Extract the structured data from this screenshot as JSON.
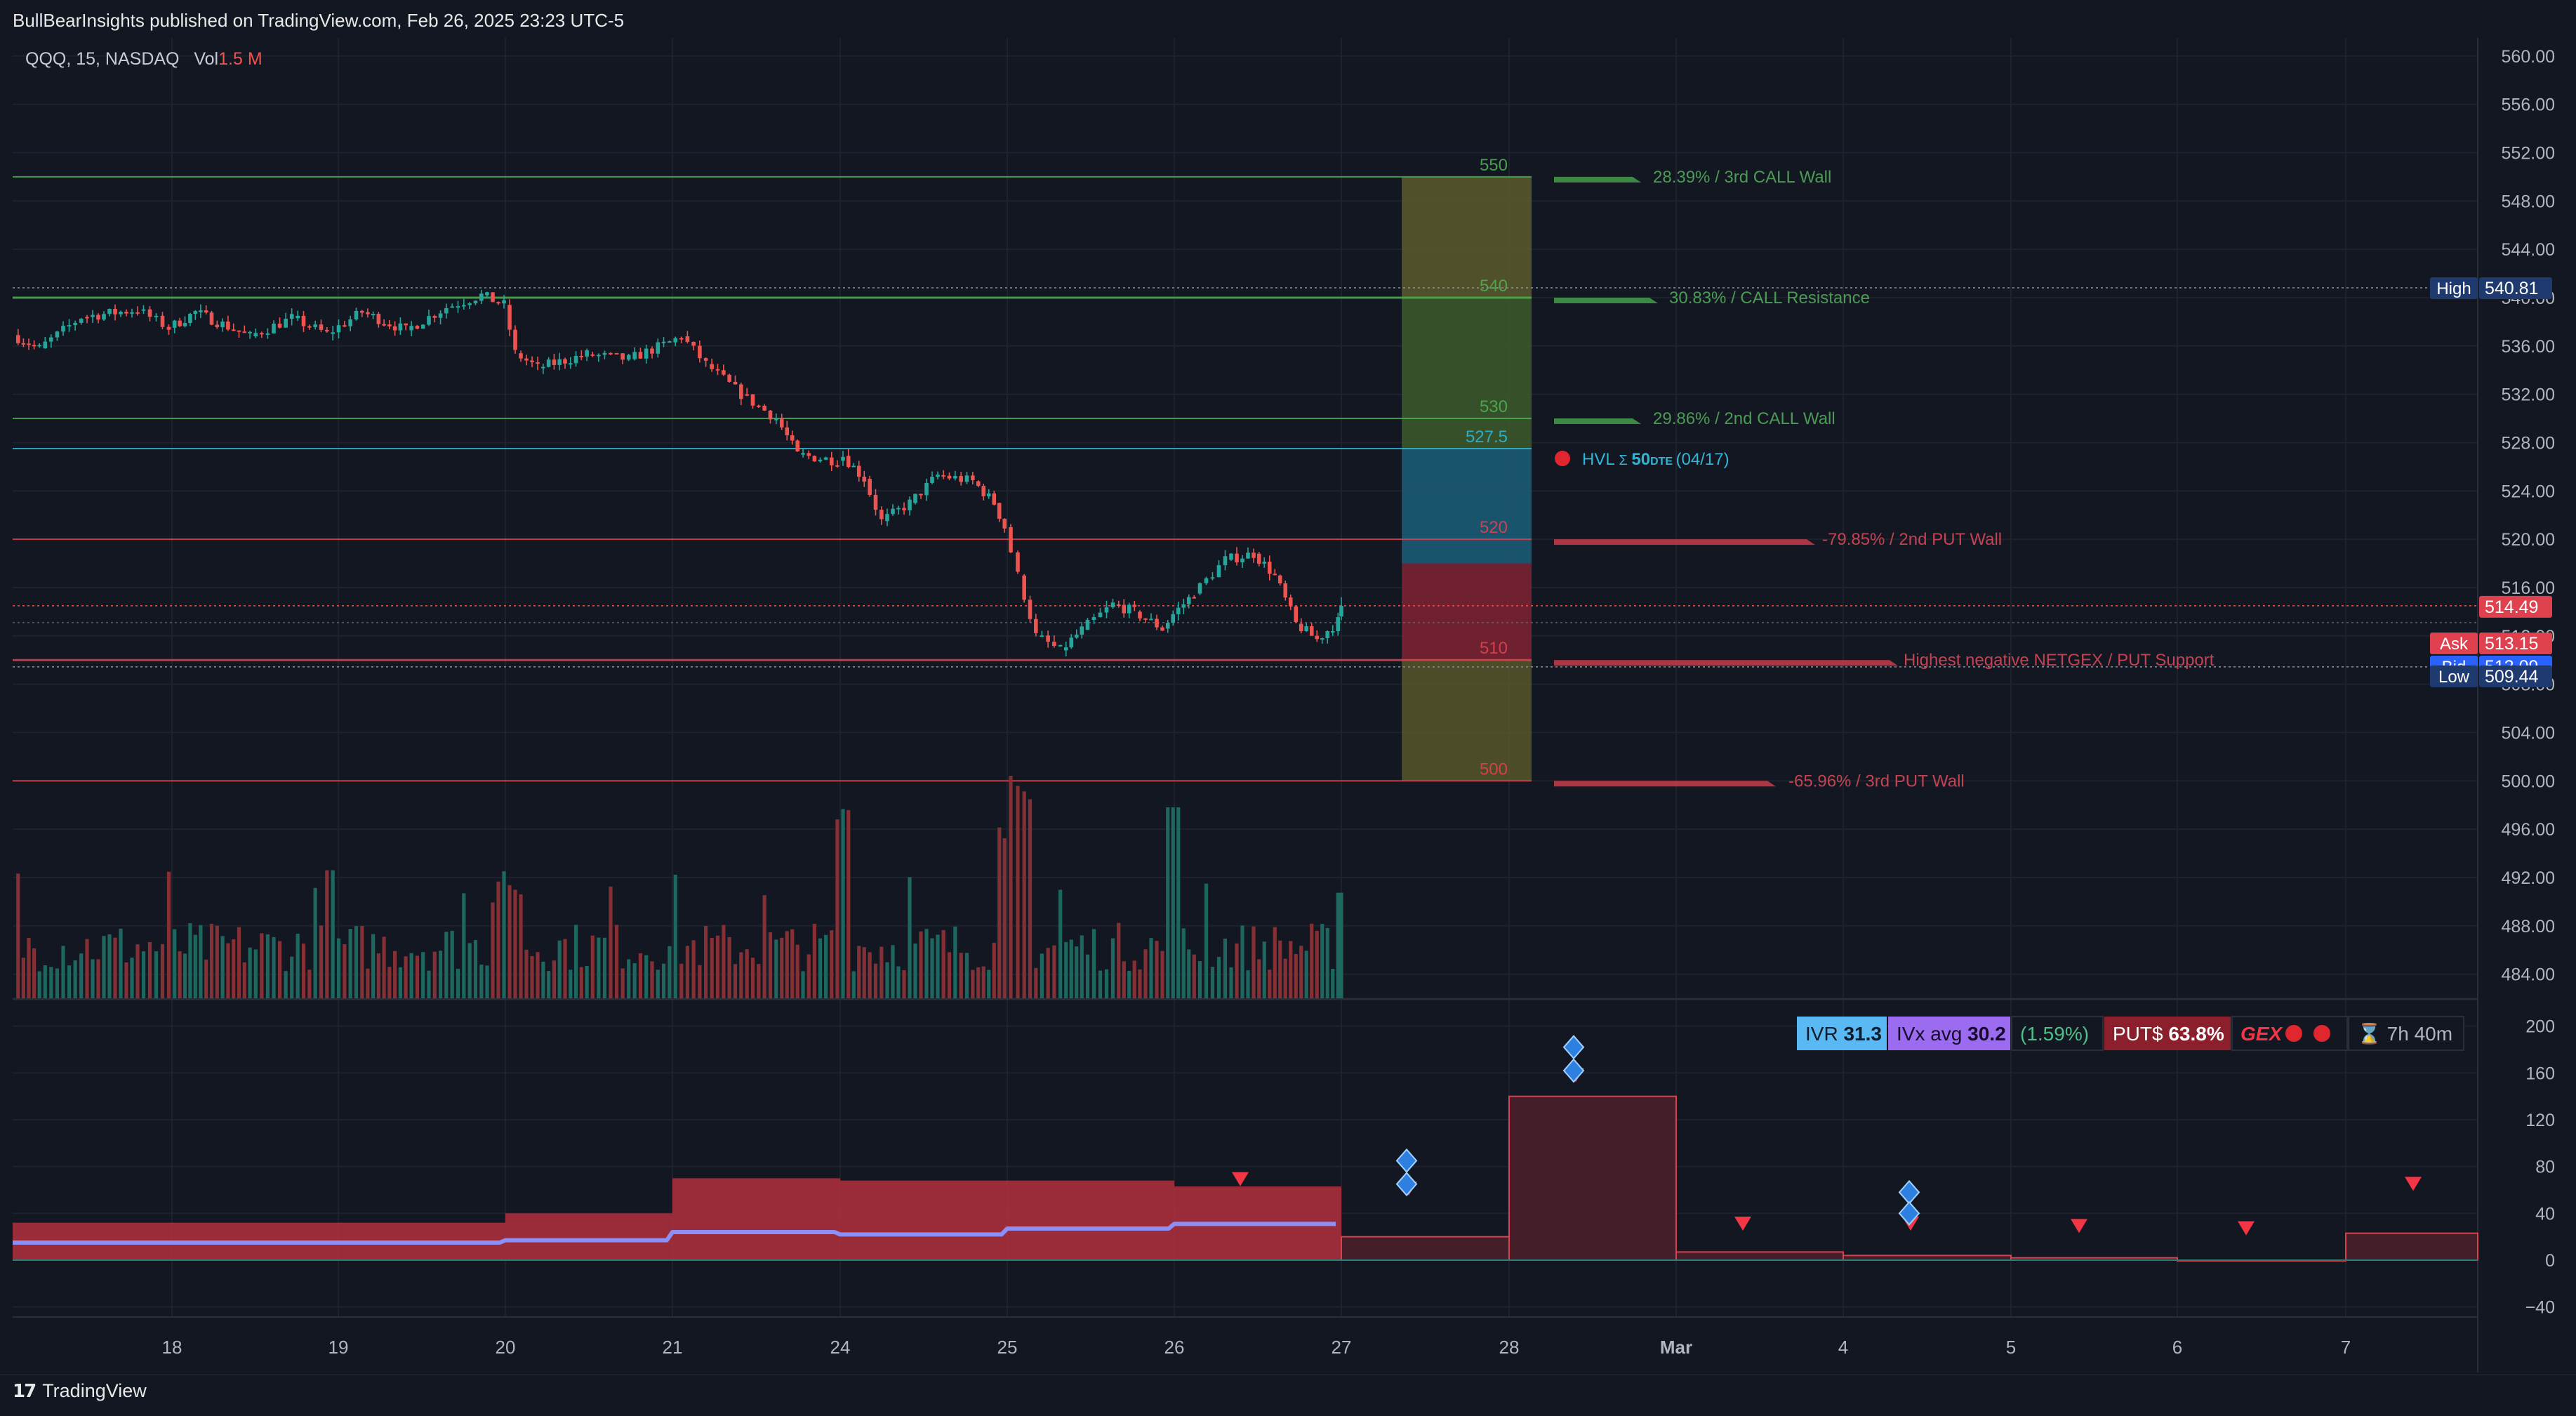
{
  "header": {
    "published": "BullBearInsights published on TradingView.com, Feb 26, 2025 23:23 UTC-5",
    "symbol": "QQQ, 15, NASDAQ",
    "vol_label": "Vol",
    "vol_value": "1.5 M"
  },
  "footer": {
    "brand": "TradingView",
    "logo": "tradingview-logo-icon"
  },
  "colors": {
    "bg": "#131722",
    "up": "#26a69a",
    "down": "#ef5350",
    "grid": "#1e222d",
    "call": "#4caf50",
    "put": "#f23645",
    "hvl": "#2196f3",
    "axis_text": "#b2b5be"
  },
  "chart_data": [
    {
      "type": "candlestick",
      "symbol": "QQQ",
      "interval": "15",
      "exchange": "NASDAQ",
      "x_labels": [
        {
          "x": "Feb 18",
          "label": "18"
        },
        {
          "x": "Feb 19",
          "label": "19"
        },
        {
          "x": "Feb 20",
          "label": "20"
        },
        {
          "x": "Feb 21",
          "label": "21"
        },
        {
          "x": "Feb 24",
          "label": "24"
        },
        {
          "x": "Feb 25",
          "label": "25"
        },
        {
          "x": "Feb 26",
          "label": "26"
        },
        {
          "x": "Feb 27",
          "label": "27"
        },
        {
          "x": "Feb 28",
          "label": "28"
        },
        {
          "x": "Mar 3",
          "label": "Mar"
        },
        {
          "x": "Mar 4",
          "label": "4"
        },
        {
          "x": "Mar 5",
          "label": "5"
        },
        {
          "x": "Mar 6",
          "label": "6"
        },
        {
          "x": "Mar 7",
          "label": "7"
        }
      ],
      "y_ticks": [
        "560.00",
        "556.00",
        "552.00",
        "548.00",
        "544.00",
        "540.00",
        "536.00",
        "532.00",
        "528.00",
        "524.00",
        "520.00",
        "516.00",
        "512.00",
        "508.00",
        "504.00",
        "500.00",
        "496.00",
        "492.00",
        "488.00",
        "484.00"
      ],
      "ylim": [
        482.0,
        561.5
      ],
      "price_path_approx": [
        [
          "Feb 18 open",
          536.9
        ],
        [
          "Feb 18 mid",
          538.4
        ],
        [
          "Feb 18 late",
          539.0
        ],
        [
          "Feb 19",
          538.5
        ],
        [
          "Feb 19 late",
          538.8
        ],
        [
          "Feb 20 high",
          540.8
        ],
        [
          "Feb 20 close",
          534.0
        ],
        [
          "Feb 21 mid",
          535.5
        ],
        [
          "Feb 21 peak",
          538.0
        ],
        [
          "Feb 21 close",
          532.0
        ],
        [
          "Feb 24 open",
          527.0
        ],
        [
          "Feb 24 low",
          521.0
        ],
        [
          "Feb 24 rebound",
          525.0
        ],
        [
          "Feb 25 open",
          522.0
        ],
        [
          "Feb 25 low",
          510.4
        ],
        [
          "Feb 25 close",
          514.5
        ],
        [
          "Feb 26 high",
          519.5
        ],
        [
          "Feb 26 low",
          512.0
        ],
        [
          "Feb 26 close",
          514.49
        ]
      ],
      "price_tags": {
        "high": {
          "label": "High",
          "value": "540.81"
        },
        "last": {
          "value": "514.49"
        },
        "ask": {
          "label": "Ask",
          "value": "513.15"
        },
        "bid": {
          "label": "Bid",
          "value": "513.09"
        },
        "low": {
          "label": "Low",
          "value": "509.44"
        }
      },
      "levels": [
        {
          "price": 550,
          "label": "550",
          "desc": "28.39% / 3rd CALL Wall",
          "kind": "call"
        },
        {
          "price": 540,
          "label": "540",
          "desc": "30.83% / CALL Resistance",
          "kind": "call"
        },
        {
          "price": 530,
          "label": "530",
          "desc": "29.86% / 2nd CALL Wall",
          "kind": "call"
        },
        {
          "price": 527.5,
          "label": "527.5",
          "desc": "HVL",
          "sigma": "Σ",
          "dte": "50",
          "dte_unit": "DTE",
          "date": "(04/17)",
          "kind": "hvl"
        },
        {
          "price": 520,
          "label": "520",
          "desc": "-79.85% / 2nd PUT Wall",
          "kind": "put"
        },
        {
          "price": 510,
          "label": "510",
          "desc": "Highest negative NETGEX / PUT Support",
          "kind": "put"
        },
        {
          "price": 500,
          "label": "500",
          "desc": "-65.96% / 3rd PUT Wall",
          "kind": "put"
        }
      ]
    },
    {
      "type": "bar",
      "name": "Vol",
      "value_label": "1.5 M",
      "note": "volume histogram per 15-minute bar, relative heights"
    },
    {
      "type": "area",
      "y_ticks": [
        "200",
        "160",
        "120",
        "80",
        "40",
        "0",
        "−40"
      ],
      "ylim": [
        -48,
        222
      ],
      "segments": [
        {
          "from": "Feb 18",
          "to": "Feb 19",
          "value": 32
        },
        {
          "from": "Feb 19",
          "to": "Feb 20",
          "value": 32
        },
        {
          "from": "Feb 20",
          "to": "Feb 21",
          "value": 40
        },
        {
          "from": "Feb 21",
          "to": "Feb 24",
          "value": 70
        },
        {
          "from": "Feb 24",
          "to": "Feb 25",
          "value": 68
        },
        {
          "from": "Feb 25",
          "to": "Feb 26",
          "value": 68
        },
        {
          "from": "Feb 26",
          "to": "Feb 27",
          "value": 63
        },
        {
          "from": "Feb 27",
          "to": "Feb 28",
          "value": 20
        },
        {
          "from": "Feb 28",
          "to": "Mar 3",
          "value": 140
        },
        {
          "from": "Mar 3",
          "to": "Mar 4",
          "value": 7
        },
        {
          "from": "Mar 4",
          "to": "Mar 5",
          "value": 4
        },
        {
          "from": "Mar 5",
          "to": "Mar 6",
          "value": 2
        },
        {
          "from": "Mar 6",
          "to": "Mar 7",
          "value": 0
        },
        {
          "from": "Mar 7",
          "to": "Mar 8",
          "value": 23
        }
      ],
      "iv_line": [
        15,
        15,
        17,
        24,
        22,
        27,
        31
      ],
      "chips": {
        "ivr_label": "IVR",
        "ivr_value": "31.3",
        "ivx_label": "IVx avg",
        "ivx_value": "30.2",
        "change": "(1.59%)",
        "puts_label": "PUT$",
        "puts_value": "63.8%",
        "gex_label": "GEX",
        "timer": "7h 40m"
      }
    }
  ]
}
